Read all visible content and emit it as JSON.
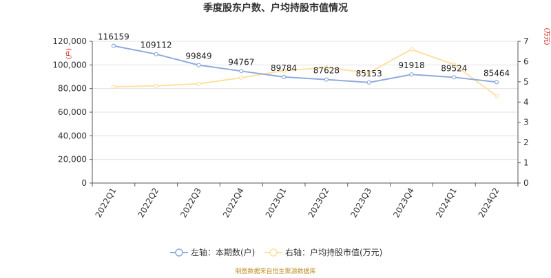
{
  "chart_data": {
    "type": "line",
    "title": "季度股东户数、户均持股市值情况",
    "categories": [
      "2022Q1",
      "2022Q2",
      "2022Q3",
      "2022Q4",
      "2023Q1",
      "2023Q2",
      "2023Q3",
      "2023Q4",
      "2024Q1",
      "2024Q2"
    ],
    "left_axis": {
      "unit": "(户)",
      "ylim": [
        0,
        120000
      ],
      "ticks": [
        0,
        20000,
        40000,
        60000,
        80000,
        100000,
        120000
      ],
      "tick_labels": [
        "0",
        "20,000",
        "40,000",
        "60,000",
        "80,000",
        "100,000",
        "120,000"
      ]
    },
    "right_axis": {
      "unit": "(万元)",
      "ylim": [
        0,
        7
      ],
      "ticks": [
        0,
        1,
        2,
        3,
        4,
        5,
        6,
        7
      ],
      "tick_labels": [
        "0",
        "1",
        "2",
        "3",
        "4",
        "5",
        "6",
        "7"
      ]
    },
    "series": [
      {
        "name": "左轴：本期数(户)",
        "axis": "left",
        "color": "#8faadc",
        "values": [
          116159,
          109112,
          99849,
          94767,
          89784,
          87628,
          85153,
          91918,
          89524,
          85464
        ],
        "labels": [
          "116159",
          "109112",
          "99849",
          "94767",
          "89784",
          "87628",
          "85153",
          "91918",
          "89524",
          "85464"
        ]
      },
      {
        "name": "右轴：户均持股市值(万元)",
        "axis": "right",
        "color": "#ffe0a0",
        "values": [
          4.75,
          4.8,
          4.9,
          5.2,
          5.55,
          5.7,
          5.45,
          6.6,
          5.85,
          4.3
        ]
      }
    ],
    "grid": true,
    "legend_position": "bottom-center",
    "source": "制图数据来自恒生聚源数据库",
    "source_color": "#c0902a",
    "right_axis_color": "#cc0000"
  }
}
